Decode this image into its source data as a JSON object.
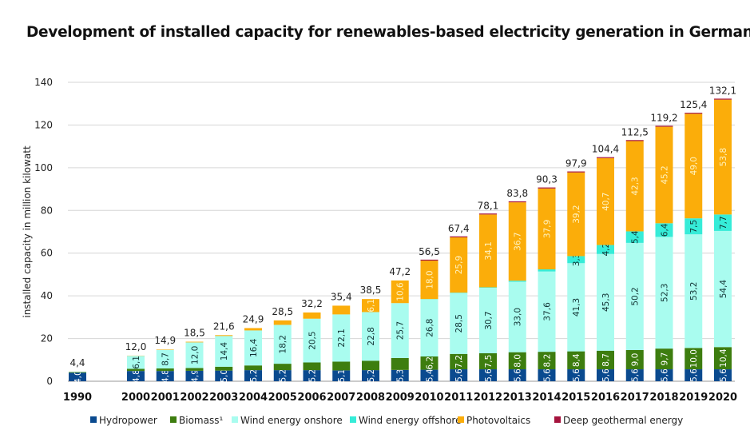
{
  "chart_data": {
    "type": "bar",
    "stacked": true,
    "title": "Development of installed capacity for renewables-based electricity generation in Germany",
    "ylabel": "installed capacity in million kilowatt",
    "xlabel": "",
    "ylim": [
      0,
      140
    ],
    "yticks": [
      0,
      20,
      40,
      60,
      80,
      100,
      120,
      140
    ],
    "grid": true,
    "legend_position": "bottom",
    "categories": [
      "1990",
      "2000",
      "2001",
      "2002",
      "2003",
      "2004",
      "2005",
      "2006",
      "2007",
      "2008",
      "2009",
      "2010",
      "2011",
      "2012",
      "2013",
      "2014",
      "2015",
      "2016",
      "2017",
      "2018",
      "2019",
      "2020"
    ],
    "totals": [
      "4,4",
      "12,0",
      "14,9",
      "18,5",
      "21,6",
      "24,9",
      "28,5",
      "32,2",
      "35,4",
      "38,5",
      "47,2",
      "56,5",
      "67,4",
      "78,1",
      "83,8",
      "90,3",
      "97,9",
      "104,4",
      "112,5",
      "119,2",
      "125,4",
      "132,1"
    ],
    "series": [
      {
        "name": "Hydropower",
        "color": "#0a4a8f",
        "values": [
          4.0,
          4.8,
          4.8,
          4.9,
          5.0,
          5.2,
          5.2,
          5.2,
          5.1,
          5.2,
          5.3,
          5.4,
          5.6,
          5.6,
          5.6,
          5.6,
          5.6,
          5.6,
          5.6,
          5.6,
          5.6,
          5.6
        ],
        "labels": [
          "4,0",
          "4,8",
          "4,8",
          "4,9",
          "5,0",
          "5,2",
          "5,2",
          "5,2",
          "5,1",
          "5,2",
          "5,3",
          "5,4",
          "5,6",
          "5,6",
          "5,6",
          "5,6",
          "5,6",
          "5,6",
          "5,6",
          "5,6",
          "5,6",
          "5,6"
        ]
      },
      {
        "name": "Biomass¹",
        "color": "#3d7d0f",
        "values": [
          0.3,
          1.0,
          1.2,
          1.3,
          1.8,
          2.2,
          3.0,
          3.6,
          4.1,
          4.4,
          5.6,
          6.2,
          7.2,
          7.5,
          8.0,
          8.2,
          8.4,
          8.7,
          9.0,
          9.7,
          10.0,
          10.4
        ],
        "labels": [
          null,
          null,
          null,
          null,
          null,
          null,
          null,
          null,
          null,
          null,
          null,
          "6,2",
          "7,2",
          "7,5",
          "8,0",
          "8,2",
          "8,4",
          "8,7",
          "9,0",
          "9,7",
          "10,0",
          "10,4"
        ]
      },
      {
        "name": "Wind energy onshore",
        "color": "#a9fcef",
        "values": [
          0.1,
          6.1,
          8.7,
          12.0,
          14.4,
          16.4,
          18.2,
          20.5,
          22.1,
          22.8,
          25.7,
          26.8,
          28.5,
          30.7,
          33.0,
          37.6,
          41.3,
          45.3,
          50.2,
          52.3,
          53.2,
          54.4
        ],
        "labels": [
          null,
          "6,1",
          "8,7",
          "12,0",
          "14,4",
          "16,4",
          "18,2",
          "20,5",
          "22,1",
          "22,8",
          "25,7",
          "26,8",
          "28,5",
          "30,7",
          "33,0",
          "37,6",
          "41,3",
          "45,3",
          "50,2",
          "52,3",
          "53,2",
          "54,4"
        ]
      },
      {
        "name": "Wind energy offshore",
        "color": "#36ecd8",
        "values": [
          0,
          0,
          0,
          0,
          0,
          0,
          0,
          0,
          0,
          0,
          0,
          0.1,
          0.2,
          0.2,
          0.5,
          1.0,
          3.3,
          4.2,
          5.4,
          6.4,
          7.5,
          7.7
        ],
        "labels": [
          null,
          null,
          null,
          null,
          null,
          null,
          null,
          null,
          null,
          null,
          null,
          null,
          null,
          null,
          null,
          null,
          "3,3",
          "4,2",
          "5,4",
          "6,4",
          "7,5",
          "7,7"
        ]
      },
      {
        "name": "Photovoltaics",
        "color": "#fbad0a",
        "values": [
          0,
          0.1,
          0.2,
          0.3,
          0.4,
          1.1,
          2.1,
          2.9,
          4.1,
          6.1,
          10.6,
          18.0,
          25.9,
          34.1,
          36.7,
          37.9,
          39.2,
          40.7,
          42.3,
          45.2,
          49.0,
          53.8
        ],
        "labels": [
          null,
          null,
          null,
          null,
          null,
          null,
          null,
          null,
          null,
          "6,1",
          "10,6",
          "18,0",
          "25,9",
          "34,1",
          "36,7",
          "37,9",
          "39,2",
          "40,7",
          "42,3",
          "45,2",
          "49,0",
          "53,8"
        ]
      },
      {
        "name": "Deep geothermal energy",
        "color": "#a5133d",
        "values": [
          0,
          0,
          0,
          0,
          0,
          0,
          0,
          0,
          0,
          0,
          0,
          0.03,
          0.03,
          0.03,
          0.03,
          0.03,
          0.03,
          0.04,
          0.04,
          0.04,
          0.05,
          0.05
        ],
        "labels": []
      }
    ]
  }
}
